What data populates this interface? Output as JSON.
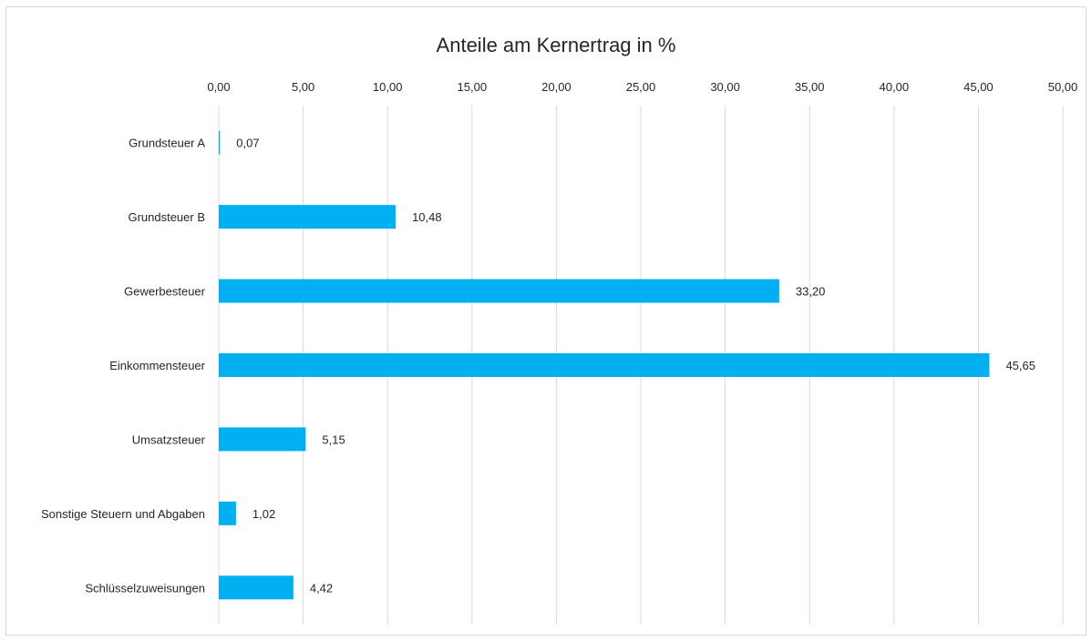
{
  "chart_data": {
    "type": "bar",
    "orientation": "horizontal",
    "title": "Anteile am Kernertrag in %",
    "xlabel": "",
    "ylabel": "",
    "xlim": [
      0,
      50
    ],
    "x_ticks": [
      "0,00",
      "5,00",
      "10,00",
      "15,00",
      "20,00",
      "25,00",
      "30,00",
      "35,00",
      "40,00",
      "45,00",
      "50,00"
    ],
    "axis_position": "top",
    "grid": true,
    "legend": false,
    "bar_color": "#00b0f0",
    "categories": [
      "Grundsteuer A",
      "Grundsteuer B",
      "Gewerbesteuer",
      "Einkommensteuer",
      "Umsatzsteuer",
      "Sonstige Steuern und Abgaben",
      "Schlüsselzuweisungen"
    ],
    "values": [
      0.07,
      10.48,
      33.2,
      45.65,
      5.15,
      1.02,
      4.42
    ],
    "data_labels": [
      "0,07",
      "10,48",
      "33,20",
      "45,65",
      "5,15",
      "1,02",
      "4,42"
    ]
  }
}
